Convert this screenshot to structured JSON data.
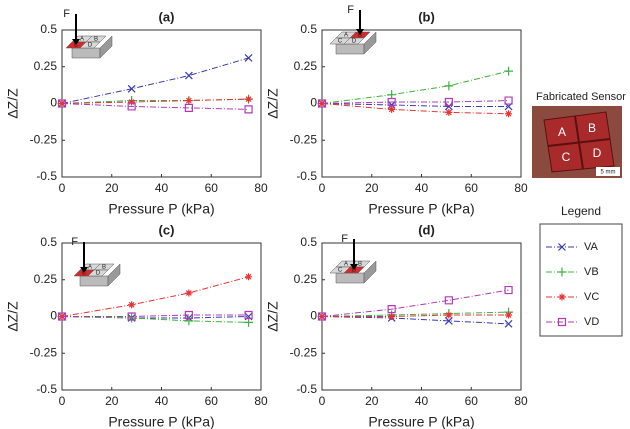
{
  "chart_data": [
    {
      "type": "line",
      "title": "(a)",
      "xlabel": "Pressure P (kPa)",
      "ylabel": "ΔZ/Z",
      "x": [
        0,
        28,
        51,
        75
      ],
      "xlim": [
        0,
        80
      ],
      "ylim": [
        -0.5,
        0.5
      ],
      "xticks": [
        0,
        20,
        40,
        60,
        80
      ],
      "yticks": [
        -0.5,
        -0.25,
        0,
        0.25,
        0.5
      ],
      "inset": {
        "force": "F",
        "pads": [
          "A",
          "B",
          "C",
          "D"
        ]
      },
      "series": [
        {
          "name": "VA",
          "color": "#3a3ab4",
          "marker": "x",
          "values": [
            0,
            0.1,
            0.19,
            0.31
          ]
        },
        {
          "name": "VB",
          "color": "#3cb43c",
          "marker": "plus",
          "values": [
            0,
            0.02,
            0.02,
            0.03
          ]
        },
        {
          "name": "VC",
          "color": "#e83232",
          "marker": "star",
          "values": [
            0,
            0.01,
            0.02,
            0.03
          ]
        },
        {
          "name": "VD",
          "color": "#b03cb4",
          "marker": "square",
          "values": [
            0,
            -0.02,
            -0.03,
            -0.04
          ]
        }
      ]
    },
    {
      "type": "line",
      "title": "(b)",
      "xlabel": "Pressure P (kPa)",
      "ylabel": "ΔZ/Z",
      "x": [
        0,
        28,
        51,
        75
      ],
      "xlim": [
        0,
        80
      ],
      "ylim": [
        -0.5,
        0.5
      ],
      "xticks": [
        0,
        20,
        40,
        60,
        80
      ],
      "yticks": [
        -0.5,
        -0.25,
        0,
        0.25,
        0.5
      ],
      "inset": {
        "force": "F",
        "pads": [
          "A",
          "B",
          "C",
          "D"
        ]
      },
      "series": [
        {
          "name": "VA",
          "color": "#3a3ab4",
          "marker": "x",
          "values": [
            0,
            -0.01,
            -0.02,
            -0.02
          ]
        },
        {
          "name": "VB",
          "color": "#3cb43c",
          "marker": "plus",
          "values": [
            0,
            0.06,
            0.12,
            0.22
          ]
        },
        {
          "name": "VC",
          "color": "#e83232",
          "marker": "star",
          "values": [
            0,
            -0.04,
            -0.06,
            -0.07
          ]
        },
        {
          "name": "VD",
          "color": "#b03cb4",
          "marker": "square",
          "values": [
            0,
            0.01,
            0.01,
            0.02
          ]
        }
      ]
    },
    {
      "type": "line",
      "title": "(c)",
      "xlabel": "Pressure P (kPa)",
      "ylabel": "ΔZ/Z",
      "x": [
        0,
        28,
        51,
        75
      ],
      "xlim": [
        0,
        80
      ],
      "ylim": [
        -0.5,
        0.5
      ],
      "xticks": [
        0,
        20,
        40,
        60,
        80
      ],
      "yticks": [
        -0.5,
        -0.25,
        0,
        0.25,
        0.5
      ],
      "inset": {
        "force": "F",
        "pads": [
          "A",
          "B",
          "C",
          "D"
        ]
      },
      "series": [
        {
          "name": "VA",
          "color": "#3a3ab4",
          "marker": "x",
          "values": [
            0,
            -0.01,
            -0.01,
            0
          ]
        },
        {
          "name": "VB",
          "color": "#3cb43c",
          "marker": "plus",
          "values": [
            0,
            -0.01,
            -0.03,
            -0.04
          ]
        },
        {
          "name": "VC",
          "color": "#e83232",
          "marker": "star",
          "values": [
            0,
            0.08,
            0.16,
            0.27
          ]
        },
        {
          "name": "VD",
          "color": "#b03cb4",
          "marker": "square",
          "values": [
            0,
            0,
            0.01,
            0.01
          ]
        }
      ]
    },
    {
      "type": "line",
      "title": "(d)",
      "xlabel": "Pressure P (kPa)",
      "ylabel": "ΔZ/Z",
      "x": [
        0,
        28,
        51,
        75
      ],
      "xlim": [
        0,
        80
      ],
      "ylim": [
        -0.5,
        0.5
      ],
      "xticks": [
        0,
        20,
        40,
        60,
        80
      ],
      "yticks": [
        -0.5,
        -0.25,
        0,
        0.25,
        0.5
      ],
      "inset": {
        "force": "F",
        "pads": [
          "A",
          "B",
          "C",
          "D"
        ]
      },
      "series": [
        {
          "name": "VA",
          "color": "#3a3ab4",
          "marker": "x",
          "values": [
            0,
            -0.01,
            -0.03,
            -0.05
          ]
        },
        {
          "name": "VB",
          "color": "#3cb43c",
          "marker": "plus",
          "values": [
            0,
            0.01,
            0.02,
            0.03
          ]
        },
        {
          "name": "VC",
          "color": "#e83232",
          "marker": "star",
          "values": [
            0,
            0,
            0.01,
            0.01
          ]
        },
        {
          "name": "VD",
          "color": "#b03cb4",
          "marker": "square",
          "values": [
            0,
            0.05,
            0.11,
            0.18
          ]
        }
      ]
    }
  ],
  "legend": {
    "title": "Legend"
  },
  "sensor_photo": {
    "title": "Fabricated Sensor",
    "pads": [
      "A",
      "B",
      "C",
      "D"
    ],
    "scale": "5 mm"
  }
}
